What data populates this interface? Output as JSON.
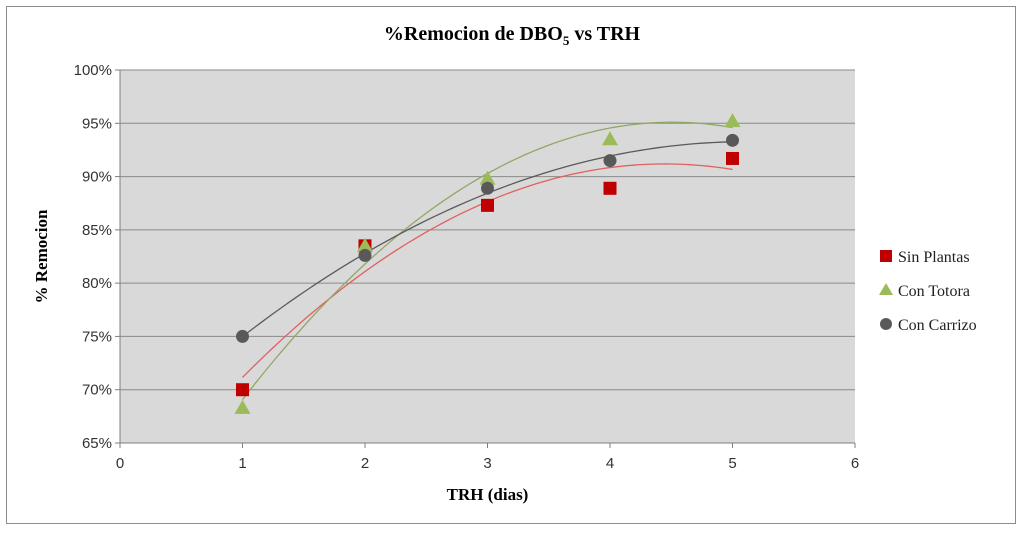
{
  "chart_data": {
    "type": "scatter",
    "title": {
      "main": "%Remocion de DBO",
      "subscript": "5",
      "suffix": " vs TRH"
    },
    "xlabel": "TRH (dias)",
    "ylabel": "% Remocion",
    "xlim": [
      0,
      6
    ],
    "ylim": [
      65,
      100
    ],
    "x_ticks": [
      "0",
      "1",
      "2",
      "3",
      "4",
      "5",
      "6"
    ],
    "y_ticks": [
      "65%",
      "70%",
      "75%",
      "80%",
      "85%",
      "90%",
      "95%",
      "100%"
    ],
    "grid": "horizontal",
    "plot_background": "#d9d9d9",
    "legend_position": "right",
    "trendline": "polynomial order 2",
    "series": [
      {
        "name": "Sin Plantas",
        "marker": "square",
        "color": "#c00000",
        "trend_color": "#e06060",
        "x": [
          1,
          2,
          3,
          4,
          5
        ],
        "y": [
          70.0,
          83.5,
          87.3,
          88.9,
          91.7
        ]
      },
      {
        "name": "Con Totora",
        "marker": "triangle",
        "color": "#9bbb59",
        "trend_color": "#8fa865",
        "x": [
          1,
          2,
          3,
          4,
          5
        ],
        "y": [
          68.3,
          83.5,
          89.8,
          93.5,
          95.2
        ]
      },
      {
        "name": "Con Carrizo",
        "marker": "circle",
        "color": "#595959",
        "trend_color": "#5a5a5a",
        "x": [
          1,
          2,
          3,
          4,
          5
        ],
        "y": [
          75.0,
          82.6,
          88.9,
          91.5,
          93.4
        ]
      }
    ]
  }
}
